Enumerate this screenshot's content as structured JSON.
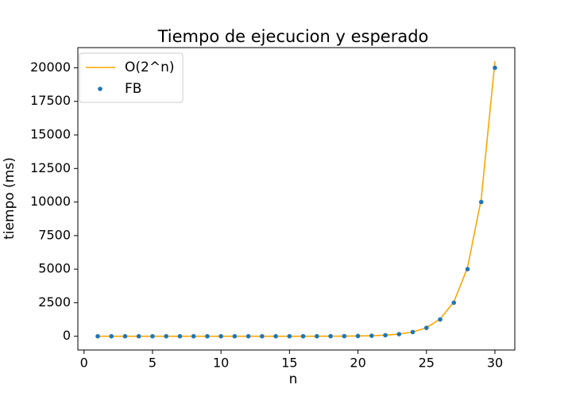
{
  "chart_data": {
    "type": "line",
    "title": "Tiempo de ejecucion y esperado",
    "xlabel": "n",
    "ylabel": "tiempo (ms)",
    "x": [
      1,
      2,
      3,
      4,
      5,
      6,
      7,
      8,
      9,
      10,
      11,
      12,
      13,
      14,
      15,
      16,
      17,
      18,
      19,
      20,
      21,
      22,
      23,
      24,
      25,
      26,
      27,
      28,
      29,
      30
    ],
    "series": [
      {
        "name": "O(2^n)",
        "type": "line",
        "color": "#ffa500",
        "values": [
          0,
          0,
          0,
          0,
          0,
          0,
          0,
          0,
          0.01,
          0.02,
          0.04,
          0.08,
          0.16,
          0.31,
          0.63,
          1.25,
          2.5,
          5,
          10,
          20,
          40,
          80,
          160,
          320,
          640,
          1280,
          2560,
          5120,
          10240,
          20480
        ]
      },
      {
        "name": "FB",
        "type": "scatter",
        "color": "#1f77b4",
        "values": [
          0,
          0,
          0,
          0,
          0,
          0,
          0,
          0,
          0,
          0,
          0,
          0,
          0,
          0,
          1,
          1,
          2,
          5,
          10,
          20,
          39,
          78,
          156,
          312,
          625,
          1250,
          2500,
          5000,
          10000,
          20000
        ]
      }
    ],
    "xlim": [
      -0.45,
      31.45
    ],
    "ylim": [
      -1024,
      21504
    ],
    "xticks": [
      0,
      5,
      10,
      15,
      20,
      25,
      30
    ],
    "yticks": [
      0,
      2500,
      5000,
      7500,
      10000,
      12500,
      15000,
      17500,
      20000
    ],
    "legend": "upper left"
  }
}
